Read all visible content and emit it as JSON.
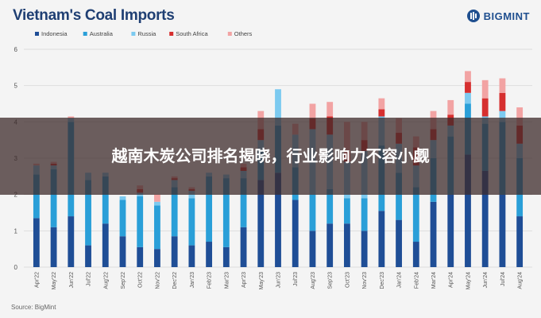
{
  "chart_data": {
    "type": "bar",
    "stacked": true,
    "title": "Vietnam's Coal Imports",
    "source": "Source: BigMint",
    "brand": "BIGMINT",
    "categories": [
      "Apr'22",
      "May'22",
      "Jun'22",
      "Jul'22",
      "Aug'22",
      "Sep'22",
      "Oct'22",
      "Nov'22",
      "Dec'22",
      "Jan'23",
      "Feb'23",
      "Mar'23",
      "Apr'23",
      "May'23",
      "Jun'23",
      "Jul'23",
      "Aug'23",
      "Sep'23",
      "Oct'23",
      "Nov'23",
      "Dec'23",
      "Jan'24",
      "Feb'24",
      "Mar'24",
      "Apr'24",
      "May'24",
      "Jun'24",
      "Jul'24",
      "Aug'24"
    ],
    "series": [
      {
        "name": "Indonesia",
        "color": "#1f4e96",
        "values": [
          1.35,
          1.1,
          1.4,
          0.6,
          1.2,
          0.85,
          0.55,
          0.5,
          0.85,
          0.6,
          0.7,
          0.55,
          1.1,
          2.4,
          2.6,
          1.85,
          1.0,
          1.2,
          1.2,
          1.0,
          1.55,
          1.3,
          0.7,
          1.8,
          2.0,
          3.1,
          2.65,
          2.0,
          1.4
        ]
      },
      {
        "name": "Australia",
        "color": "#2a9fd8",
        "values": [
          1.2,
          1.6,
          2.6,
          1.8,
          1.3,
          1.0,
          1.4,
          1.2,
          1.35,
          1.3,
          1.8,
          1.9,
          1.35,
          0.8,
          1.3,
          0.9,
          1.0,
          0.95,
          0.7,
          0.9,
          1.8,
          1.3,
          1.5,
          1.2,
          1.6,
          1.4,
          1.3,
          2.0,
          1.6
        ]
      },
      {
        "name": "Russia",
        "color": "#7ccaf0",
        "values": [
          0.25,
          0.1,
          0.1,
          0.2,
          0.1,
          0.1,
          0.1,
          0.1,
          0.2,
          0.2,
          0.1,
          0.1,
          0.2,
          0.3,
          1.0,
          0.9,
          1.8,
          1.5,
          1.0,
          1.3,
          0.8,
          0.8,
          0.6,
          0.5,
          0.3,
          0.3,
          0.2,
          0.3,
          0.4
        ]
      },
      {
        "name": "South Africa",
        "color": "#d62f2f",
        "values": [
          0.0,
          0.05,
          0.0,
          0.0,
          0.0,
          0.0,
          0.1,
          0.0,
          0.05,
          0.05,
          0.0,
          0.0,
          0.1,
          0.3,
          0.0,
          0.0,
          0.3,
          0.5,
          0.3,
          0.3,
          0.2,
          0.3,
          0.5,
          0.3,
          0.3,
          0.3,
          0.5,
          0.5,
          0.5
        ]
      },
      {
        "name": "Others",
        "color": "#f2a3a3",
        "values": [
          0.05,
          0.05,
          0.05,
          0.0,
          0.0,
          0.0,
          0.1,
          0.2,
          0.05,
          0.05,
          0.0,
          0.0,
          0.1,
          0.5,
          0.0,
          0.3,
          0.4,
          0.4,
          0.8,
          0.5,
          0.3,
          0.4,
          0.3,
          0.5,
          0.4,
          0.3,
          0.5,
          0.4,
          0.5
        ]
      }
    ],
    "ylim": [
      0,
      6
    ],
    "yticks": [
      0,
      1,
      2,
      3,
      4,
      5,
      6
    ],
    "grid": true,
    "legend_position": "top-left"
  },
  "banner": {
    "text": "越南木炭公司排名揭晓，行业影响力不容小觑"
  }
}
